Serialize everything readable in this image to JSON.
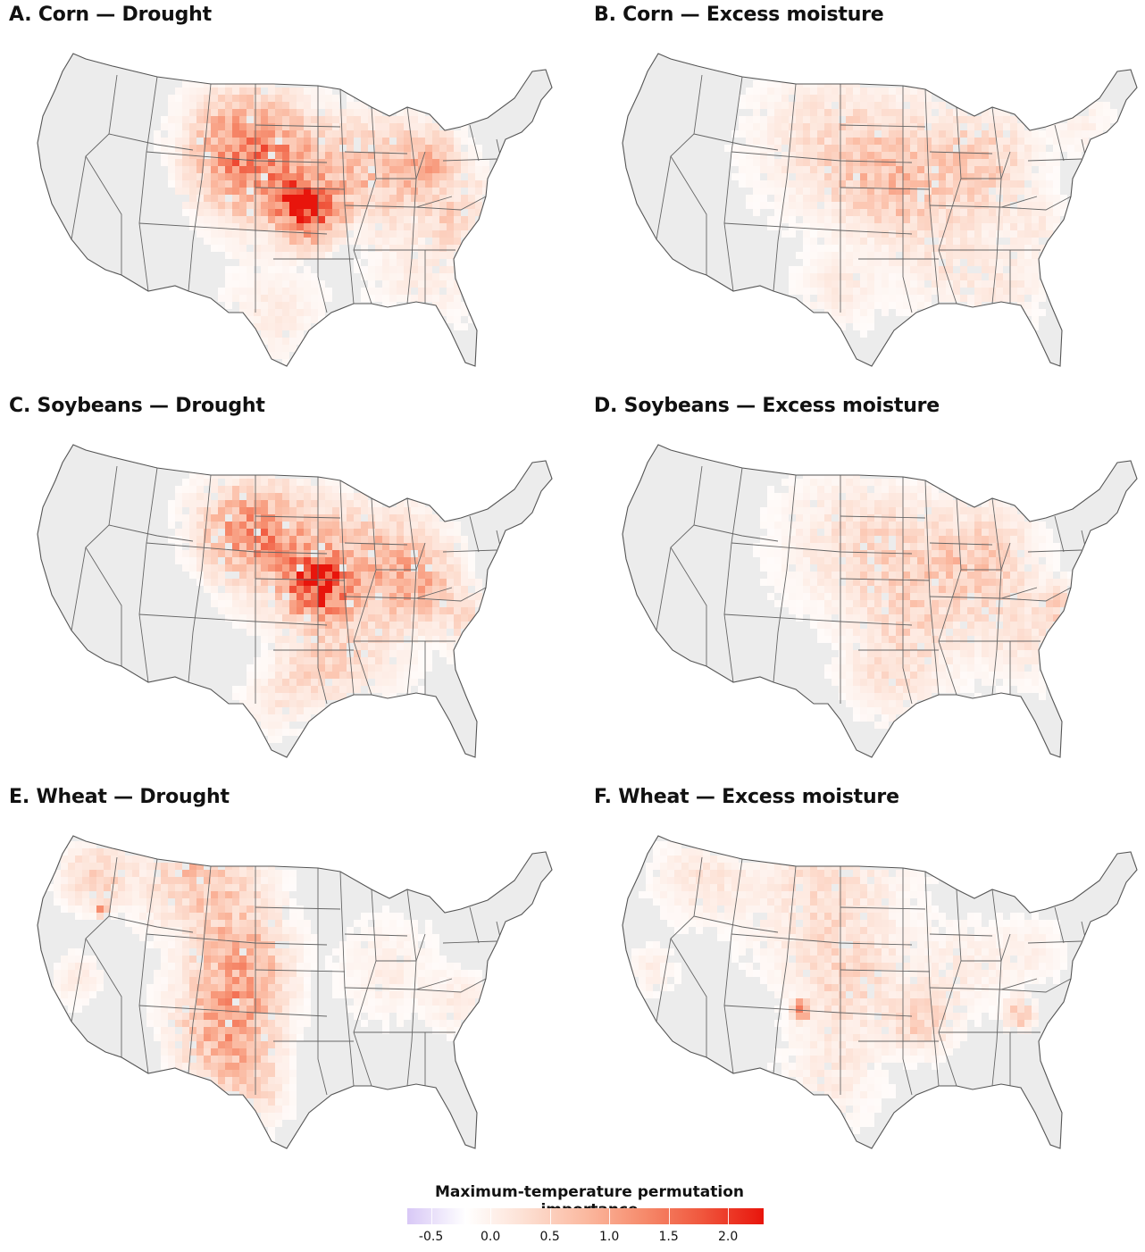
{
  "panels": [
    {
      "title": "A. Corn — Drought",
      "pattern": "corn_drought"
    },
    {
      "title": "B. Corn — Excess moisture",
      "pattern": "corn_moist"
    },
    {
      "title": "C. Soybeans — Drought",
      "pattern": "soy_drought"
    },
    {
      "title": "D. Soybeans — Excess moisture",
      "pattern": "soy_moist"
    },
    {
      "title": "E. Wheat — Drought",
      "pattern": "wheat_drought"
    },
    {
      "title": "F. Wheat — Excess moisture",
      "pattern": "wheat_moist"
    }
  ],
  "legend": {
    "title": "Maximum-temperature permutation importance",
    "min": -0.7,
    "max": 2.3,
    "ticks": [
      {
        "value": -0.5,
        "label": "-0.5"
      },
      {
        "value": 0.0,
        "label": "0.0"
      },
      {
        "value": 0.5,
        "label": "0.5"
      },
      {
        "value": 1.0,
        "label": "1.0"
      },
      {
        "value": 1.5,
        "label": "1.5"
      },
      {
        "value": 2.0,
        "label": "2.0"
      }
    ],
    "colors": {
      "negative": "#d8c8f6",
      "zero": "#ffffff",
      "high": "#e8150c",
      "no_data": "#ececec",
      "border": "#555555"
    }
  }
}
